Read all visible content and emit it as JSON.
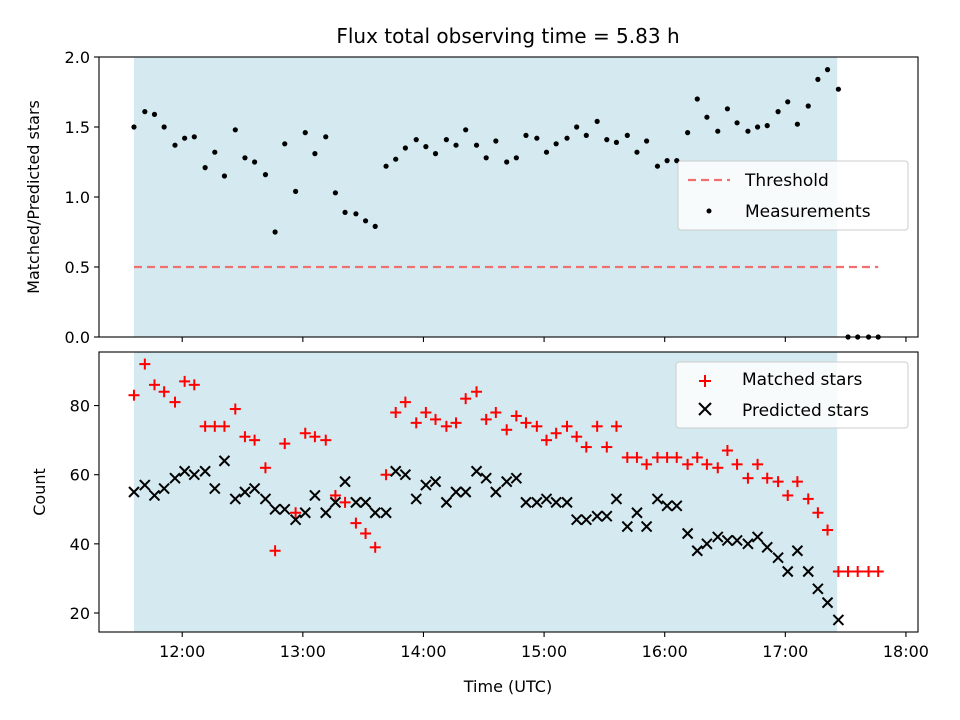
{
  "figure": {
    "title": "Flux total observing time = 5.83 h",
    "xlabel": "Time (UTC)",
    "xticks": [
      {
        "v": 12,
        "label": "12:00"
      },
      {
        "v": 13,
        "label": "13:00"
      },
      {
        "v": 14,
        "label": "14:00"
      },
      {
        "v": 15,
        "label": "15:00"
      },
      {
        "v": 16,
        "label": "16:00"
      },
      {
        "v": 17,
        "label": "17:00"
      },
      {
        "v": 18,
        "label": "18:00"
      }
    ],
    "xlim": [
      11.31,
      18.1
    ],
    "shaded_span": [
      11.6,
      17.43
    ],
    "colors": {
      "span": "#d4eaf0",
      "threshold": "#f07070",
      "measurement": "#000000",
      "matched": "#ff0000",
      "predicted": "#000000"
    }
  },
  "chart_data": [
    {
      "type": "scatter",
      "ylabel": "Matched/Predicted stars",
      "ylim": [
        0,
        2.0
      ],
      "yticks": [
        {
          "v": 0,
          "label": "0.0"
        },
        {
          "v": 0.5,
          "label": "0.5"
        },
        {
          "v": 1.0,
          "label": "1.0"
        },
        {
          "v": 1.5,
          "label": "1.5"
        },
        {
          "v": 2.0,
          "label": "2.0"
        }
      ],
      "legend": {
        "position": "center-right",
        "entries": [
          {
            "label": "Threshold",
            "marker": "dashed-line"
          },
          {
            "label": "Measurements",
            "marker": "dot"
          }
        ]
      },
      "threshold": {
        "value": 0.5,
        "x_range": [
          11.6,
          17.77
        ]
      },
      "measurements": {
        "x": [
          11.6,
          11.69,
          11.77,
          11.85,
          11.94,
          12.02,
          12.1,
          12.19,
          12.27,
          12.35,
          12.44,
          12.52,
          12.6,
          12.69,
          12.77,
          12.85,
          12.94,
          13.02,
          13.1,
          13.19,
          13.27,
          13.35,
          13.44,
          13.52,
          13.6,
          13.69,
          13.77,
          13.85,
          13.94,
          14.02,
          14.1,
          14.19,
          14.27,
          14.35,
          14.44,
          14.52,
          14.6,
          14.69,
          14.77,
          14.85,
          14.94,
          15.02,
          15.1,
          15.19,
          15.27,
          15.35,
          15.44,
          15.52,
          15.6,
          15.69,
          15.77,
          15.85,
          15.94,
          16.02,
          16.1,
          16.19,
          16.27,
          16.35,
          16.44,
          16.52,
          16.6,
          16.69,
          16.77,
          16.85,
          16.94,
          17.02,
          17.1,
          17.19,
          17.27,
          17.35,
          17.44,
          17.52,
          17.6,
          17.69,
          17.77
        ],
        "y": [
          1.5,
          1.61,
          1.59,
          1.5,
          1.37,
          1.42,
          1.43,
          1.21,
          1.32,
          1.15,
          1.48,
          1.28,
          1.25,
          1.16,
          0.75,
          1.38,
          1.04,
          1.46,
          1.31,
          1.43,
          1.03,
          0.89,
          0.88,
          0.83,
          0.79,
          1.22,
          1.27,
          1.35,
          1.41,
          1.36,
          1.31,
          1.41,
          1.37,
          1.48,
          1.37,
          1.28,
          1.4,
          1.25,
          1.28,
          1.44,
          1.42,
          1.32,
          1.38,
          1.42,
          1.5,
          1.44,
          1.54,
          1.41,
          1.39,
          1.44,
          1.32,
          1.4,
          1.22,
          1.26,
          1.26,
          1.46,
          1.7,
          1.57,
          1.47,
          1.63,
          1.53,
          1.47,
          1.5,
          1.51,
          1.61,
          1.68,
          1.52,
          1.65,
          1.84,
          1.91,
          1.77,
          0.0,
          0.0,
          0.0,
          0.0
        ]
      }
    },
    {
      "type": "scatter",
      "ylabel": "Count",
      "ylim": [
        14.5,
        95.5
      ],
      "yticks": [
        {
          "v": 20,
          "label": "20"
        },
        {
          "v": 40,
          "label": "40"
        },
        {
          "v": 60,
          "label": "60"
        },
        {
          "v": 80,
          "label": "80"
        }
      ],
      "legend": {
        "position": "top-right",
        "entries": [
          {
            "label": "Matched stars",
            "marker": "plus"
          },
          {
            "label": "Predicted stars",
            "marker": "x"
          }
        ]
      },
      "series": [
        {
          "name": "Matched stars",
          "marker": "plus",
          "x": [
            11.6,
            11.69,
            11.77,
            11.85,
            11.94,
            12.02,
            12.1,
            12.19,
            12.27,
            12.35,
            12.44,
            12.52,
            12.6,
            12.69,
            12.77,
            12.85,
            12.94,
            13.02,
            13.1,
            13.19,
            13.27,
            13.35,
            13.44,
            13.52,
            13.6,
            13.69,
            13.77,
            13.85,
            13.94,
            14.02,
            14.1,
            14.19,
            14.27,
            14.35,
            14.44,
            14.52,
            14.6,
            14.69,
            14.77,
            14.85,
            14.94,
            15.02,
            15.1,
            15.19,
            15.27,
            15.35,
            15.44,
            15.52,
            15.6,
            15.69,
            15.77,
            15.85,
            15.94,
            16.02,
            16.1,
            16.19,
            16.27,
            16.35,
            16.44,
            16.52,
            16.6,
            16.69,
            16.77,
            16.85,
            16.94,
            17.02,
            17.1,
            17.19,
            17.27,
            17.35,
            17.44,
            17.52,
            17.6,
            17.69,
            17.77
          ],
          "y": [
            83,
            92,
            86,
            84,
            81,
            87,
            86,
            74,
            74,
            74,
            79,
            71,
            70,
            62,
            38,
            69,
            49,
            72,
            71,
            70,
            54,
            52,
            46,
            43,
            39,
            60,
            78,
            81,
            75,
            78,
            76,
            74,
            75,
            82,
            84,
            76,
            78,
            73,
            77,
            75,
            74,
            70,
            72,
            74,
            71,
            68,
            74,
            68,
            74,
            65,
            65,
            63,
            65,
            65,
            65,
            63,
            65,
            63,
            62,
            67,
            63,
            59,
            63,
            59,
            58,
            54,
            58,
            53,
            49,
            44,
            32,
            32,
            32,
            32,
            32
          ]
        },
        {
          "name": "Predicted stars",
          "marker": "x",
          "x": [
            11.6,
            11.69,
            11.77,
            11.85,
            11.94,
            12.02,
            12.1,
            12.19,
            12.27,
            12.35,
            12.44,
            12.52,
            12.6,
            12.69,
            12.77,
            12.85,
            12.94,
            13.02,
            13.1,
            13.19,
            13.27,
            13.35,
            13.44,
            13.52,
            13.6,
            13.69,
            13.77,
            13.85,
            13.94,
            14.02,
            14.1,
            14.19,
            14.27,
            14.35,
            14.44,
            14.52,
            14.6,
            14.69,
            14.77,
            14.85,
            14.94,
            15.02,
            15.1,
            15.19,
            15.27,
            15.35,
            15.44,
            15.52,
            15.6,
            15.69,
            15.77,
            15.85,
            15.94,
            16.02,
            16.1,
            16.19,
            16.27,
            16.35,
            16.44,
            16.52,
            16.6,
            16.69,
            16.77,
            16.85,
            16.94,
            17.02,
            17.1,
            17.19,
            17.27,
            17.35,
            17.44
          ],
          "y": [
            55,
            57,
            54,
            56,
            59,
            61,
            60,
            61,
            56,
            64,
            53,
            55,
            56,
            53,
            50,
            50,
            47,
            49,
            54,
            49,
            52,
            58,
            52,
            52,
            49,
            49,
            61,
            60,
            53,
            57,
            58,
            52,
            55,
            55,
            61,
            59,
            55,
            58,
            59,
            52,
            52,
            53,
            52,
            52,
            47,
            47,
            48,
            48,
            53,
            45,
            49,
            45,
            53,
            51,
            51,
            43,
            38,
            40,
            42,
            41,
            41,
            40,
            42,
            39,
            36,
            32,
            38,
            32,
            27,
            23,
            18
          ]
        }
      ]
    }
  ]
}
